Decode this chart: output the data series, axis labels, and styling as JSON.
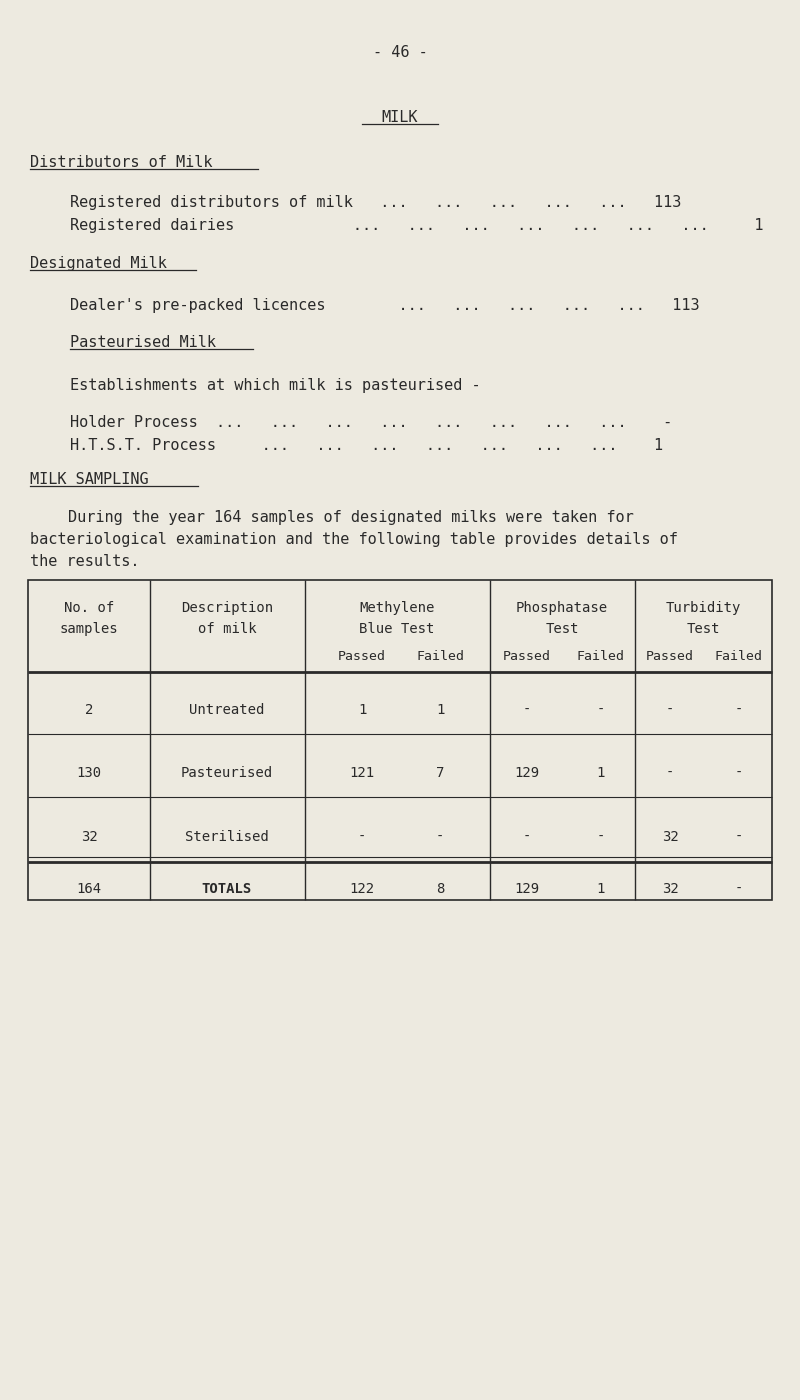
{
  "bg_color": "#edeae0",
  "text_color": "#2a2a2a",
  "page_number": "- 46 -",
  "title": "MILK",
  "section1_heading": "Distributors of Milk",
  "section2_heading": "Designated Milk",
  "section2_sub2_heading": "Pasteurised Milk",
  "section3_heading": "MILK SAMPLING",
  "table_rows": [
    {
      "no": "2",
      "desc": "Untreated",
      "mb_p": "1",
      "mb_f": "1",
      "ph_p": "-",
      "ph_f": "-",
      "tu_p": "-",
      "tu_f": "-"
    },
    {
      "no": "130",
      "desc": "Pasteurised",
      "mb_p": "121",
      "mb_f": "7",
      "ph_p": "129",
      "ph_f": "1",
      "tu_p": "-",
      "tu_f": "-"
    },
    {
      "no": "32",
      "desc": "Sterilised",
      "mb_p": "-",
      "mb_f": "-",
      "ph_p": "-",
      "ph_f": "-",
      "tu_p": "32",
      "tu_f": "-"
    }
  ],
  "table_totals": {
    "no": "164",
    "desc": "TOTALS",
    "mb_p": "122",
    "mb_f": "8",
    "ph_p": "129",
    "ph_f": "1",
    "tu_p": "32",
    "tu_f": "-"
  }
}
